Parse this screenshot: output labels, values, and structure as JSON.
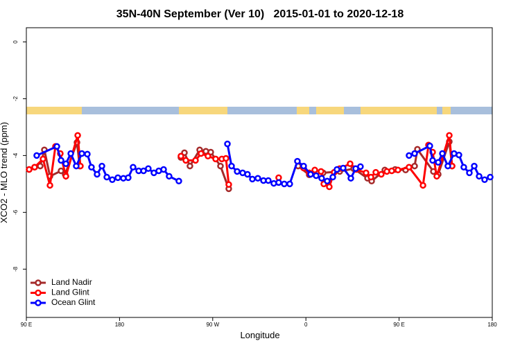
{
  "chart_data": {
    "type": "line",
    "title": "35N-40N September (Ver 10)   2015-01-01 to 2020-12-18",
    "xlabel": "Longitude",
    "ylabel": "XCO2 - MLO trend (ppm)",
    "xlim": [
      90,
      540
    ],
    "ylim": [
      -9.7,
      0.5
    ],
    "xticks": [
      {
        "value": 90,
        "label": "90 E"
      },
      {
        "value": 180,
        "label": "180"
      },
      {
        "value": 270,
        "label": "90 W"
      },
      {
        "value": 360,
        "label": "0"
      },
      {
        "value": 450,
        "label": "90 E"
      },
      {
        "value": 540,
        "label": "180"
      }
    ],
    "yticks": [
      0,
      -2,
      -4,
      -6,
      -8
    ],
    "legend": "lower left",
    "series": [
      {
        "name": "Land Nadir",
        "color": "#a52a2a",
        "x": [
          92.7,
          98.0,
          103.4,
          107.4,
          112.8,
          123.5,
          127.5,
          138.9,
          141.5,
          null,
          239.3,
          242.7,
          248.0,
          257.4,
          263.4,
          268.1,
          277.5,
          285.5,
          null,
          352.5,
          363.2,
          376.6,
          392.7,
          406.1,
          419.5,
          423.5,
          436.2,
          446.2,
          456.3,
          465.0,
          467.7,
          483.1,
          487.8,
          498.5,
          501.2
        ],
        "values": [
          -4.49,
          -4.41,
          -4.37,
          -3.8,
          -4.73,
          -4.54,
          -4.66,
          -3.54,
          -4.37,
          null,
          -4.07,
          -3.9,
          -4.37,
          -3.8,
          -3.85,
          -3.88,
          -4.37,
          -5.17,
          null,
          -4.37,
          -4.68,
          -4.61,
          -4.56,
          -4.46,
          -4.8,
          -4.9,
          -4.51,
          -4.49,
          -4.51,
          -4.37,
          -3.78,
          -4.56,
          -4.66,
          -3.51,
          -4.37
        ]
      },
      {
        "name": "Land Glint",
        "color": "#ff0000",
        "x": [
          92.7,
          98.0,
          106.1,
          112.8,
          118.1,
          122.8,
          128.2,
          139.6,
          142.2,
          null,
          239.3,
          244.0,
          253.4,
          258.7,
          265.4,
          272.8,
          278.8,
          282.8,
          285.5,
          null,
          333.7,
          null,
          357.8,
          363.2,
          368.6,
          374.6,
          377.3,
          382.6,
          387.3,
          392.7,
          402.7,
          408.7,
          418.1,
          422.8,
          427.5,
          432.8,
          438.2,
          442.9,
          448.9,
          459.6,
          473.1,
          478.4,
          482.4,
          486.4,
          498.5,
          501.2
        ],
        "values": [
          -4.49,
          -4.41,
          -4.12,
          -5.05,
          -3.68,
          -3.93,
          -4.73,
          -3.29,
          -4.37,
          null,
          -4.02,
          -4.17,
          -4.17,
          -3.93,
          -4.02,
          -4.12,
          -4.12,
          -4.1,
          -5.02,
          null,
          -4.78,
          null,
          -4.44,
          -4.61,
          -4.51,
          -4.56,
          -5.0,
          -5.1,
          -4.59,
          -4.46,
          -4.29,
          -4.49,
          -4.61,
          -4.76,
          -4.59,
          -4.66,
          -4.56,
          -4.54,
          -4.51,
          -4.41,
          -5.05,
          -3.63,
          -3.88,
          -4.73,
          -3.29,
          -4.37
        ]
      },
      {
        "name": "Ocean Glint",
        "color": "#0000ff",
        "x": [
          100.0,
          119.5,
          123.5,
          128.2,
          132.9,
          138.2,
          143.6,
          148.9,
          152.9,
          158.3,
          163.0,
          167.7,
          173.0,
          178.4,
          183.7,
          188.4,
          193.1,
          198.5,
          203.2,
          207.8,
          213.2,
          217.9,
          222.6,
          227.9,
          237.3,
          null,
          284.2,
          288.2,
          293.6,
          298.9,
          303.6,
          308.3,
          313.6,
          319.0,
          323.7,
          329.0,
          333.7,
          339.1,
          344.4,
          351.8,
          357.8,
          364.5,
          369.9,
          375.2,
          380.6,
          386.0,
          390.0,
          396.0,
          403.4,
          408.1,
          412.7,
          null,
          459.6,
          465.0,
          479.7,
          482.4,
          487.8,
          491.8,
          497.1,
          503.1,
          507.8,
          512.5,
          517.9,
          522.6,
          527.3,
          532.6,
          538.0
        ],
        "values": [
          -4.0,
          -3.68,
          -4.17,
          -4.29,
          -3.93,
          -4.37,
          -3.93,
          -3.95,
          -4.41,
          -4.66,
          -4.37,
          -4.76,
          -4.85,
          -4.78,
          -4.8,
          -4.78,
          -4.41,
          -4.54,
          -4.54,
          -4.46,
          -4.61,
          -4.54,
          -4.49,
          -4.73,
          -4.9,
          null,
          -3.59,
          -4.37,
          -4.56,
          -4.61,
          -4.66,
          -4.83,
          -4.8,
          -4.88,
          -4.88,
          -4.98,
          -4.95,
          -5.0,
          -5.0,
          -4.2,
          -4.37,
          -4.66,
          -4.71,
          -4.8,
          -4.9,
          -4.76,
          -4.49,
          -4.44,
          -4.8,
          -4.46,
          -4.39,
          null,
          -4.0,
          -3.93,
          -3.66,
          -4.17,
          -4.24,
          -3.93,
          -4.37,
          -3.93,
          -3.98,
          -4.41,
          -4.61,
          -4.37,
          -4.73,
          -4.85,
          -4.76
        ]
      }
    ]
  }
}
